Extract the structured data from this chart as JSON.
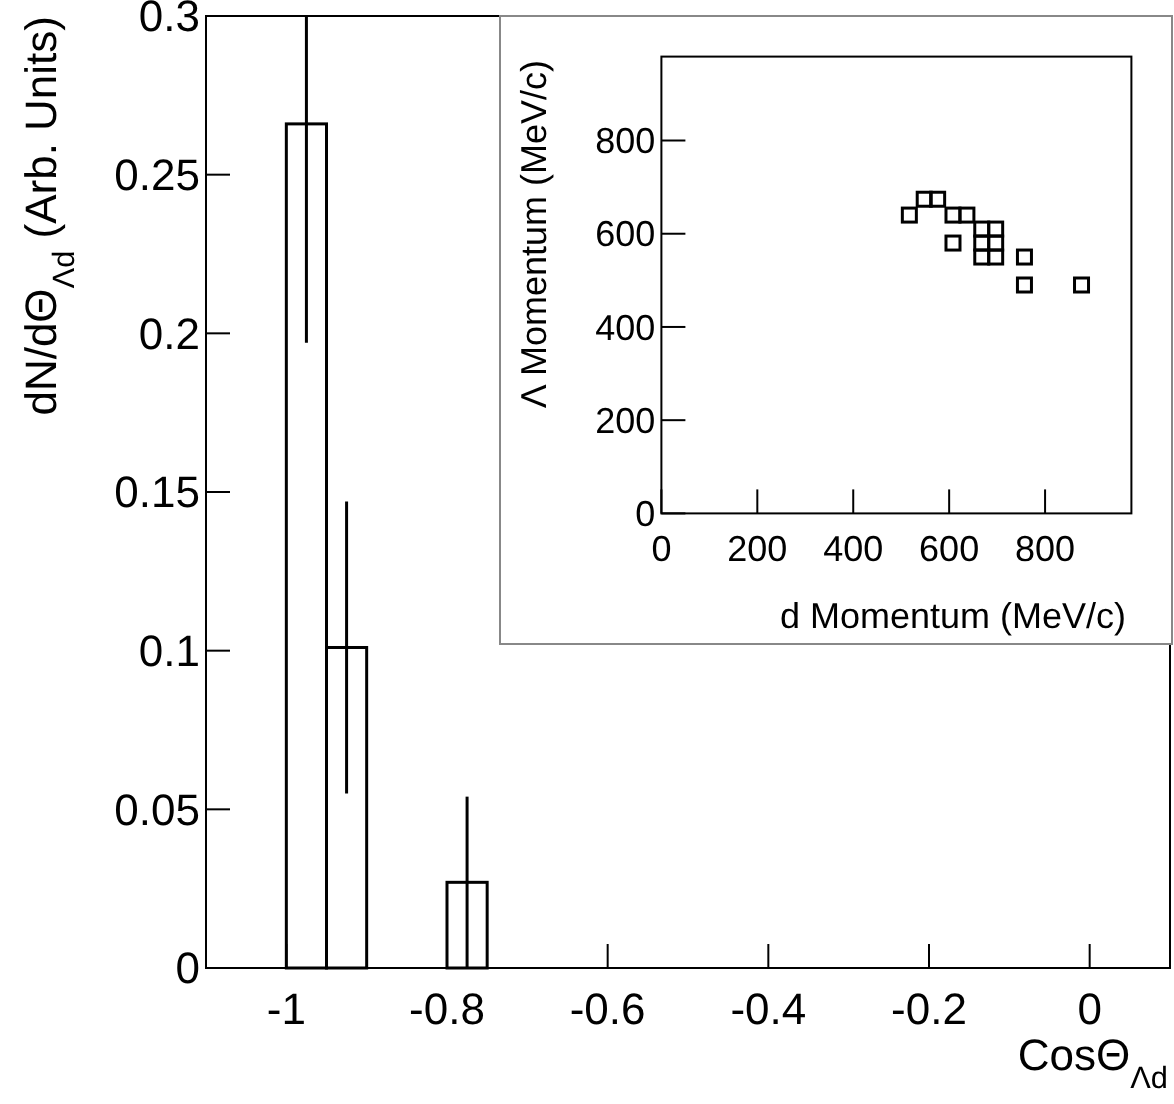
{
  "chart_data": [
    {
      "type": "histogram",
      "xlabel": "CosΘ$_{Λd}$",
      "ylabel": "dN/dΘ$_{Λd}$ (Arb. Units)",
      "bins": [
        -1,
        -0.95,
        -0.9,
        -0.85,
        -0.8,
        -0.75
      ],
      "values": [
        0.266,
        0.101,
        0,
        0,
        0.027
      ],
      "errors": [
        [
          0.197,
          0.3
        ],
        [
          0.055,
          0.147
        ],
        null,
        null,
        [
          0,
          0.054
        ]
      ],
      "color": "#000000",
      "xlim": [
        -1.1,
        0.1
      ],
      "xticks": [
        -1,
        -0.8,
        -0.6,
        -0.4,
        -0.2,
        0
      ],
      "ylim": [
        0,
        0.3
      ],
      "yticks": [
        0,
        0.05,
        0.1,
        0.15,
        0.2,
        0.25,
        0.3
      ],
      "grid": false
    },
    {
      "type": "scatter",
      "xlabel": "d Momentum (MeV/c)",
      "ylabel": "Λ Momentum (MeV/c)",
      "marker": "square",
      "color": "#000000",
      "x": [
        517,
        548,
        576,
        608,
        637,
        608,
        668,
        697,
        668,
        697,
        668,
        697,
        757,
        757,
        876
      ],
      "values": [
        640,
        674,
        674,
        640,
        640,
        580,
        610,
        610,
        580,
        580,
        550,
        550,
        550,
        490,
        490
      ],
      "xlim": [
        0,
        980
      ],
      "xticks": [
        0,
        200,
        400,
        600,
        800
      ],
      "ylim": [
        0,
        980
      ],
      "yticks": [
        0,
        200,
        400,
        600,
        800
      ],
      "grid": false
    }
  ]
}
